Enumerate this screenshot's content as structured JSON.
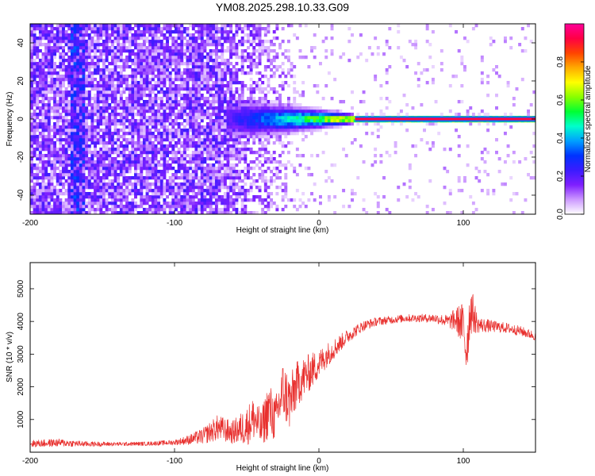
{
  "figure": {
    "title": "YM08.2025.298.10.33.G09"
  },
  "chart_data": [
    {
      "type": "heatmap",
      "title": "",
      "xlabel": "Height of straight line (km)",
      "ylabel": "Frequency (Hz)",
      "xlim": [
        -200,
        150
      ],
      "ylim": [
        -50,
        50
      ],
      "x_ticks": [
        "-200",
        "-100",
        "0",
        "100"
      ],
      "x_tick_values": [
        -200,
        -100,
        0,
        100
      ],
      "y_ticks": [
        "-40",
        "-20",
        "0",
        "20",
        "40"
      ],
      "y_tick_values": [
        -40,
        -20,
        0,
        20,
        40
      ],
      "colorbar": {
        "label": "Normalized spectral amplitude",
        "range": [
          0,
          1
        ],
        "ticks": [
          "0.0",
          "0.2",
          "0.4",
          "0.6",
          "0.8"
        ],
        "tick_values": [
          0,
          0.2,
          0.4,
          0.6,
          0.8
        ],
        "colors": [
          "#ffffff",
          "#cc99ff",
          "#7f1fff",
          "#3b1bff",
          "#0033ff",
          "#00a0ff",
          "#00ffcc",
          "#00ff33",
          "#88ff00",
          "#ffff00",
          "#ffaa00",
          "#ff4400",
          "#ff0044",
          "#ff0099"
        ]
      },
      "features": {
        "noise_band_amplitude": 0.12,
        "noise_fade_start_km": -70,
        "noise_fade_end_km": -25,
        "vertical_stripes_km": [
          -170,
          -165
        ],
        "ridge_start_km": -65,
        "ridge_peak_km": 25,
        "carrier_frequency_hz": 0,
        "carrier_amplitude": 1.0
      }
    },
    {
      "type": "line",
      "title": "",
      "xlabel": "Height of straight line (km)",
      "ylabel": "SNR (10 * v/v)",
      "xlim": [
        -200,
        150
      ],
      "ylim": [
        0,
        5800
      ],
      "x_ticks": [
        "-200",
        "-100",
        "0",
        "100"
      ],
      "x_tick_values": [
        -200,
        -100,
        0,
        100
      ],
      "y_ticks": [
        "1000",
        "2000",
        "3000",
        "4000",
        "5000"
      ],
      "y_tick_values": [
        1000,
        2000,
        3000,
        4000,
        5000
      ],
      "series": [
        {
          "color": "#e8302e",
          "x": [
            -200,
            -180,
            -160,
            -140,
            -120,
            -100,
            -90,
            -80,
            -70,
            -60,
            -50,
            -45,
            -40,
            -35,
            -30,
            -25,
            -20,
            -15,
            -10,
            -5,
            0,
            5,
            10,
            15,
            20,
            25,
            30,
            40,
            50,
            60,
            70,
            80,
            90,
            95,
            100,
            102,
            105,
            110,
            120,
            130,
            140,
            150
          ],
          "values": [
            260,
            290,
            250,
            250,
            260,
            300,
            380,
            500,
            750,
            600,
            800,
            1050,
            700,
            1300,
            1000,
            1900,
            1500,
            2100,
            2300,
            2500,
            2700,
            2950,
            3150,
            3350,
            3550,
            3700,
            3850,
            4000,
            4050,
            4100,
            4100,
            4100,
            4000,
            4050,
            3900,
            3100,
            4400,
            3900,
            3850,
            3800,
            3700,
            3550
          ],
          "noise_amplitude": [
            110,
            120,
            80,
            60,
            60,
            80,
            150,
            250,
            400,
            350,
            600,
            700,
            550,
            900,
            700,
            900,
            900,
            700,
            650,
            550,
            450,
            380,
            320,
            260,
            220,
            180,
            160,
            130,
            120,
            120,
            120,
            140,
            200,
            400,
            700,
            900,
            800,
            250,
            180,
            160,
            150,
            140
          ]
        }
      ]
    }
  ]
}
